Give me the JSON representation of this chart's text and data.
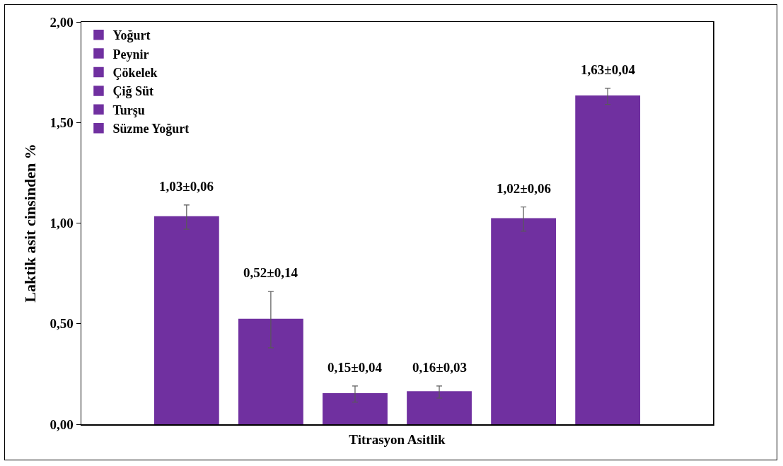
{
  "chart_data": {
    "type": "bar",
    "categories": [
      null
    ],
    "xlabel": "Titrasyon Asitlik",
    "ylabel": "Laktik asit cinsinden %",
    "ylim": [
      0,
      2
    ],
    "yticks": [
      {
        "value": 0,
        "label": "0,00"
      },
      {
        "value": 0.5,
        "label": "0,50"
      },
      {
        "value": 1,
        "label": "1,00"
      },
      {
        "value": 1.5,
        "label": "1,50"
      },
      {
        "value": 2,
        "label": "2,00"
      }
    ],
    "grid": false,
    "legend": "top left",
    "series": [
      {
        "name": "Yoğurt",
        "color": "#7030a0",
        "values": [
          1.03
        ],
        "errors": [
          0.06
        ],
        "value_labels": [
          "1,03±0,06"
        ]
      },
      {
        "name": "Peynir",
        "color": "#7030a0",
        "values": [
          0.52
        ],
        "errors": [
          0.14
        ],
        "value_labels": [
          "0,52±0,14"
        ]
      },
      {
        "name": "Çökelek",
        "color": "#7030a0",
        "values": [
          0.15
        ],
        "errors": [
          0.04
        ],
        "value_labels": [
          "0,15±0,04"
        ]
      },
      {
        "name": "Çiğ Süt",
        "color": "#7030a0",
        "values": [
          0.16
        ],
        "errors": [
          0.03
        ],
        "value_labels": [
          "0,16±0,03"
        ]
      },
      {
        "name": "Turşu",
        "color": "#7030a0",
        "values": [
          1.02
        ],
        "errors": [
          0.06
        ],
        "value_labels": [
          "1,02±0,06"
        ]
      },
      {
        "name": "Süzme Yoğurt",
        "color": "#7030a0",
        "values": [
          1.63
        ],
        "errors": [
          0.04
        ],
        "value_labels": [
          "1,63±0,04"
        ]
      }
    ]
  }
}
